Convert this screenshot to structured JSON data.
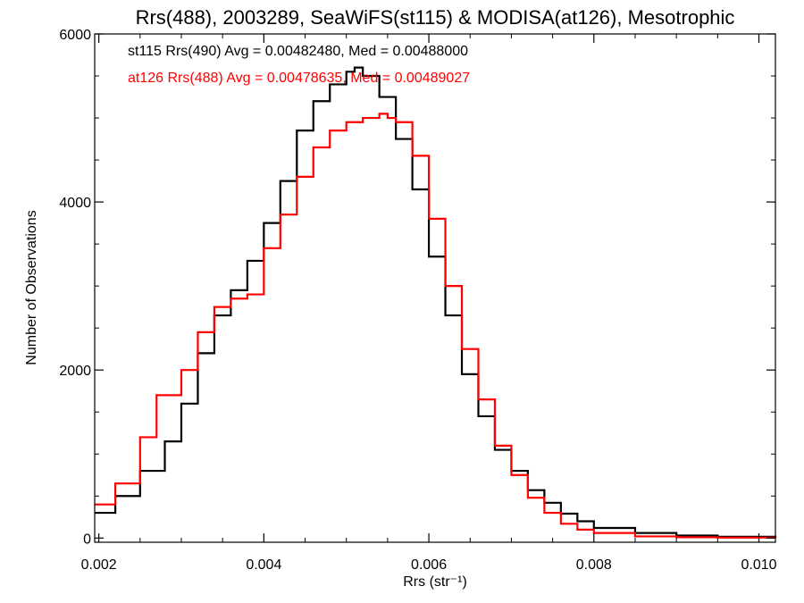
{
  "chart_data": {
    "type": "line",
    "title": "Rrs(488), 2003289, SeaWiFS(st115) & MODISA(at126), Mesotrophic",
    "xlabel": "Rrs (str⁻¹)",
    "ylabel": "Number of Observations",
    "xlim": [
      0.00195,
      0.0102
    ],
    "ylim": [
      -50,
      6000
    ],
    "xticks": [
      "0.002",
      "0.004",
      "0.006",
      "0.008",
      "0.010"
    ],
    "yticks": [
      "0",
      "2000",
      "4000",
      "6000"
    ],
    "grid": false,
    "legend_position": "top-left",
    "annotations": [
      {
        "text": "st115 Rrs(490) Avg = 0.00482480, Med = 0.00488000",
        "color": "#000000"
      },
      {
        "text": "at126 Rrs(488) Avg = 0.00478635, Med = 0.00489027",
        "color": "#ff0000"
      }
    ],
    "series": [
      {
        "color": "#000000",
        "x": [
          0.00195,
          0.0022,
          0.0025,
          0.0028,
          0.003,
          0.0032,
          0.0034,
          0.0036,
          0.0038,
          0.004,
          0.0042,
          0.0044,
          0.0046,
          0.0048,
          0.005,
          0.0051,
          0.0052,
          0.0054,
          0.0056,
          0.0058,
          0.006,
          0.0062,
          0.0064,
          0.0066,
          0.0068,
          0.007,
          0.0072,
          0.0074,
          0.0076,
          0.0078,
          0.008,
          0.0085,
          0.009,
          0.0095,
          0.0102
        ],
        "values": [
          300,
          500,
          800,
          1150,
          1600,
          2200,
          2650,
          2950,
          3300,
          3750,
          4250,
          4850,
          5200,
          5400,
          5550,
          5600,
          5500,
          5250,
          4750,
          4150,
          3350,
          2650,
          1950,
          1450,
          1050,
          800,
          570,
          420,
          290,
          200,
          120,
          60,
          30,
          15,
          5
        ]
      },
      {
        "color": "#ff0000",
        "x": [
          0.00195,
          0.0022,
          0.0025,
          0.0027,
          0.003,
          0.0032,
          0.0034,
          0.0036,
          0.0038,
          0.004,
          0.0042,
          0.0044,
          0.0046,
          0.0048,
          0.005,
          0.0052,
          0.0054,
          0.0055,
          0.0056,
          0.0058,
          0.006,
          0.0062,
          0.0064,
          0.0066,
          0.0068,
          0.007,
          0.0072,
          0.0074,
          0.0076,
          0.0078,
          0.008,
          0.0085,
          0.009,
          0.0095,
          0.0102
        ],
        "values": [
          400,
          650,
          1200,
          1700,
          2000,
          2450,
          2750,
          2850,
          2900,
          3450,
          3850,
          4300,
          4650,
          4850,
          4950,
          5000,
          5050,
          5000,
          4950,
          4550,
          3800,
          3000,
          2250,
          1650,
          1100,
          750,
          480,
          300,
          170,
          100,
          60,
          20,
          10,
          5,
          2
        ]
      }
    ]
  }
}
